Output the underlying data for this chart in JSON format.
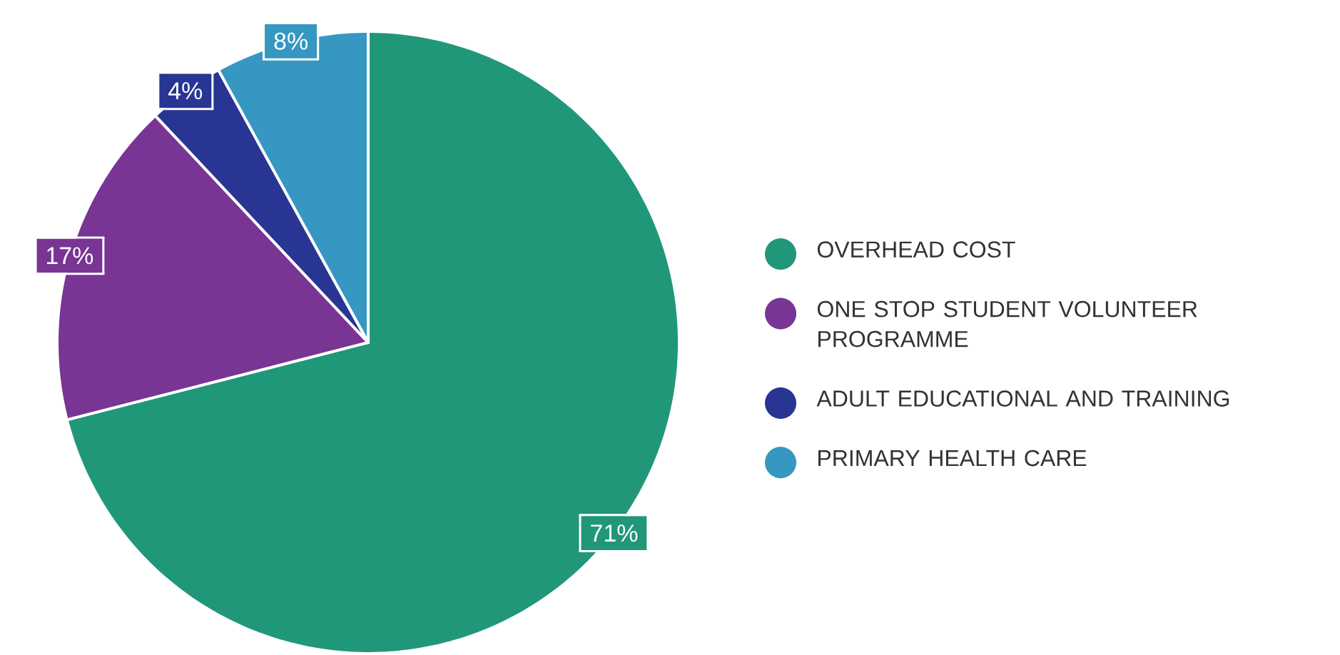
{
  "chart_data": {
    "type": "pie",
    "categories": [
      "OVERHEAD COST",
      "ONE STOP STUDENT VOLUNTEER PROGRAMME",
      "ADULT EDUCATIONAL AND TRAINING",
      "PRIMARY HEALTH CARE"
    ],
    "values": [
      71,
      17,
      4,
      8
    ],
    "value_labels": [
      "71%",
      "17%",
      "4%",
      "8%"
    ],
    "colors": [
      "#21977a",
      "#783594",
      "#283593",
      "#3597c2"
    ],
    "legend": "right"
  }
}
